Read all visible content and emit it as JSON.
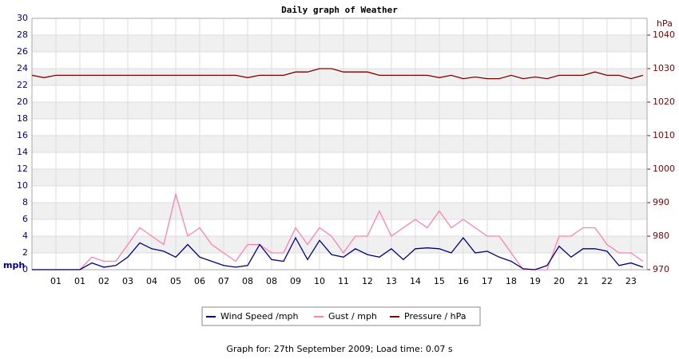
{
  "chart_data": {
    "type": "line",
    "title": "Daily graph of Weather",
    "ylabel": "mph",
    "y2label": "hPa",
    "note": "Graph for: 27th September 2009; Load time: 0.07 s",
    "x": [
      0,
      0.5,
      1,
      1.5,
      2,
      2.5,
      3,
      3.5,
      4,
      4.5,
      5,
      5.5,
      6,
      6.5,
      7,
      7.5,
      8,
      8.5,
      9,
      9.5,
      10,
      10.5,
      11,
      11.5,
      12,
      12.5,
      13,
      13.5,
      14,
      14.5,
      15,
      15.5,
      16,
      16.5,
      17,
      17.5,
      18,
      18.5,
      19,
      19.5,
      20,
      20.5,
      21,
      21.5,
      22,
      22.5,
      23,
      23.5,
      24,
      24.5,
      25,
      25.5
    ],
    "xlim": [
      0,
      25.67
    ],
    "xticks": [
      {
        "value": 1,
        "label": "01"
      },
      {
        "value": 2,
        "label": "01"
      },
      {
        "value": 3,
        "label": "02"
      },
      {
        "value": 4,
        "label": "03"
      },
      {
        "value": 5,
        "label": "04"
      },
      {
        "value": 6,
        "label": "05"
      },
      {
        "value": 7,
        "label": "06"
      },
      {
        "value": 8,
        "label": "07"
      },
      {
        "value": 9,
        "label": "08"
      },
      {
        "value": 10,
        "label": "08"
      },
      {
        "value": 11,
        "label": "09"
      },
      {
        "value": 12,
        "label": "10"
      },
      {
        "value": 13,
        "label": "11"
      },
      {
        "value": 14,
        "label": "12"
      },
      {
        "value": 15,
        "label": "13"
      },
      {
        "value": 16,
        "label": "14"
      },
      {
        "value": 17,
        "label": "15"
      },
      {
        "value": 18,
        "label": "16"
      },
      {
        "value": 19,
        "label": "17"
      },
      {
        "value": 20,
        "label": "18"
      },
      {
        "value": 21,
        "label": "19"
      },
      {
        "value": 22,
        "label": "20"
      },
      {
        "value": 23,
        "label": "21"
      },
      {
        "value": 24,
        "label": "22"
      },
      {
        "value": 25,
        "label": "23"
      }
    ],
    "ylim": [
      0,
      30
    ],
    "yticks": [
      0,
      2,
      4,
      6,
      8,
      10,
      12,
      14,
      16,
      18,
      20,
      22,
      24,
      26,
      28,
      30
    ],
    "y2lim": [
      970,
      1045
    ],
    "y2ticks": [
      970,
      980,
      990,
      1000,
      1010,
      1020,
      1030,
      1040
    ],
    "grid": true,
    "series": [
      {
        "name": "Wind Speed /mph",
        "color": "#000080",
        "values": [
          0,
          0,
          0,
          0,
          0,
          0.8,
          0.3,
          0.5,
          1.5,
          3.2,
          2.5,
          2.2,
          1.5,
          3,
          1.5,
          1,
          0.5,
          0.3,
          0.5,
          3,
          1.2,
          1,
          3.8,
          1.2,
          3.5,
          1.8,
          1.5,
          2.5,
          1.8,
          1.5,
          2.5,
          1.2,
          2.5,
          2.6,
          2.5,
          2,
          3.8,
          2,
          2.2,
          1.5,
          1,
          0.1,
          0,
          0.5,
          2.8,
          1.5,
          2.5,
          2.5,
          2.2,
          0.5,
          0.8,
          0.3
        ]
      },
      {
        "name": "Gust / mph",
        "color": "#ff80b0",
        "values": [
          0,
          0,
          0,
          0,
          0,
          1.5,
          1,
          1,
          3,
          5,
          4,
          3,
          9,
          4,
          5,
          3,
          2,
          1,
          3,
          3,
          2,
          2,
          5,
          3,
          5,
          4,
          2,
          4,
          4,
          7,
          4,
          5,
          6,
          5,
          7,
          5,
          6,
          5,
          4,
          4,
          2,
          0,
          0,
          0,
          4,
          4,
          5,
          5,
          3,
          2,
          2,
          1
        ]
      },
      {
        "name": "Pressure / hPa",
        "color": "#800000",
        "axis": "y2",
        "values": [
          1028,
          1027.3,
          1028,
          1028,
          1028,
          1028,
          1028,
          1028,
          1028,
          1028,
          1028,
          1028,
          1028,
          1028,
          1028,
          1028,
          1028,
          1028,
          1027.3,
          1028,
          1028,
          1028,
          1029,
          1029,
          1030,
          1030,
          1029,
          1029,
          1029,
          1028,
          1028,
          1028,
          1028,
          1028,
          1027.3,
          1028,
          1027,
          1027.5,
          1027,
          1027,
          1028,
          1027,
          1027.5,
          1027,
          1028,
          1028,
          1028,
          1029,
          1028,
          1028,
          1027,
          1028
        ]
      }
    ]
  }
}
